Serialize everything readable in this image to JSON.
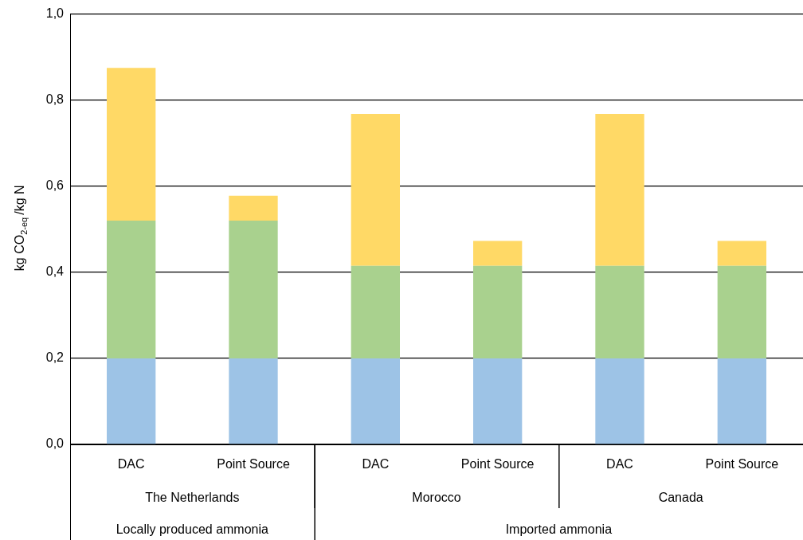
{
  "chart_data": {
    "type": "bar",
    "stacked": true,
    "ylabel": "kg CO$_{2-eq}$/kg N",
    "categories": [
      "DAC",
      "Point Source",
      "DAC",
      "Point Source",
      "DAC",
      "Point Source"
    ],
    "series": [
      {
        "color": "#9dc3e6",
        "values": [
          0.2,
          0.2,
          0.2,
          0.2,
          0.2,
          0.2
        ]
      },
      {
        "color": "#a9d18e",
        "values": [
          0.32,
          0.32,
          0.215,
          0.215,
          0.215,
          0.215
        ]
      },
      {
        "color": "#ffd966",
        "values": [
          0.355,
          0.058,
          0.353,
          0.058,
          0.353,
          0.058
        ]
      }
    ],
    "ylim": [
      0,
      1
    ],
    "yticks": [
      {
        "value": 0,
        "label": "0,0"
      },
      {
        "value": 0.2,
        "label": "0,2"
      },
      {
        "value": 0.4,
        "label": "0,4"
      },
      {
        "value": 0.6,
        "label": "0,6"
      },
      {
        "value": 0.8,
        "label": "0,8"
      },
      {
        "value": 1,
        "label": "1,0"
      }
    ],
    "grid": "y",
    "legend": false,
    "annotations": [
      "The Netherlands",
      "Morocco",
      "Canada",
      "Locally produced ammonia",
      "Imported ammonia"
    ]
  }
}
